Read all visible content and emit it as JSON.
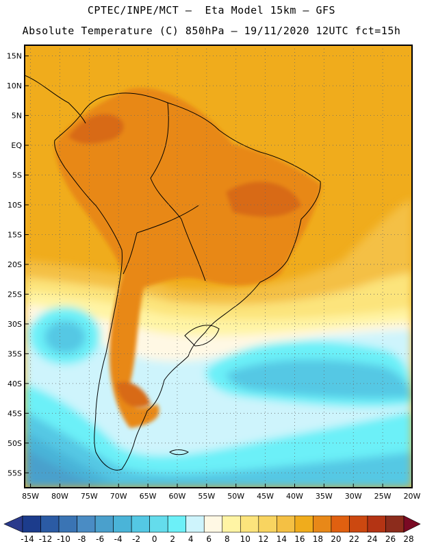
{
  "title": {
    "line1": "CPTEC/INPE/MCT –  Eta Model 15km – GFS",
    "line2": "Absolute Temperature (C) 850hPa – 19/11/2020 12UTC fct=15h"
  },
  "map": {
    "lat_labels": [
      "15N",
      "10N",
      "5N",
      "EQ",
      "5S",
      "10S",
      "15S",
      "20S",
      "25S",
      "30S",
      "35S",
      "40S",
      "45S",
      "50S",
      "55S"
    ],
    "lon_labels": [
      "85W",
      "80W",
      "75W",
      "70W",
      "65W",
      "60W",
      "55W",
      "50W",
      "45W",
      "40W",
      "35W",
      "30W",
      "25W",
      "20W"
    ]
  },
  "colorbar": {
    "labels": [
      "-14",
      "-12",
      "-10",
      "-8",
      "-6",
      "-4",
      "-2",
      "0",
      "2",
      "4",
      "6",
      "8",
      "10",
      "12",
      "14",
      "16",
      "18",
      "20",
      "22",
      "24",
      "26",
      "28"
    ],
    "colors": [
      "#1c3c8c",
      "#2b5ba4",
      "#3a74b4",
      "#4a8cc4",
      "#4aa0cc",
      "#4ab4d8",
      "#54c8e4",
      "#64dcec",
      "#6cf0f8",
      "#cef4fc",
      "#fff8e4",
      "#fff4a4",
      "#fce47c",
      "#f8d460",
      "#f4c044",
      "#f0ac1c",
      "#e88818",
      "#e06010",
      "#cc4810",
      "#b43414",
      "#8c2c1c",
      "#6c1020",
      "#ffffff"
    ],
    "left_arrow_color": "#2a3a8c",
    "right_arrow_color": "#7a0a24"
  },
  "colors": {
    "ocean_warm": "#f0ac1c",
    "land_hot": "#e88818",
    "land_hotter": "#d86a14",
    "warm_band": "#f4c044",
    "yellow": "#fce47c",
    "pale_yellow": "#fff4a4",
    "cream": "#fff8e4",
    "pale_cyan": "#cef4fc",
    "cyan": "#6cf0f8",
    "teal": "#54c8e4",
    "mid_blue": "#4ab4d8",
    "blue": "#4aa0cc",
    "dark_blue": "#3a74b4",
    "deep_blue": "#2b5ba4"
  }
}
